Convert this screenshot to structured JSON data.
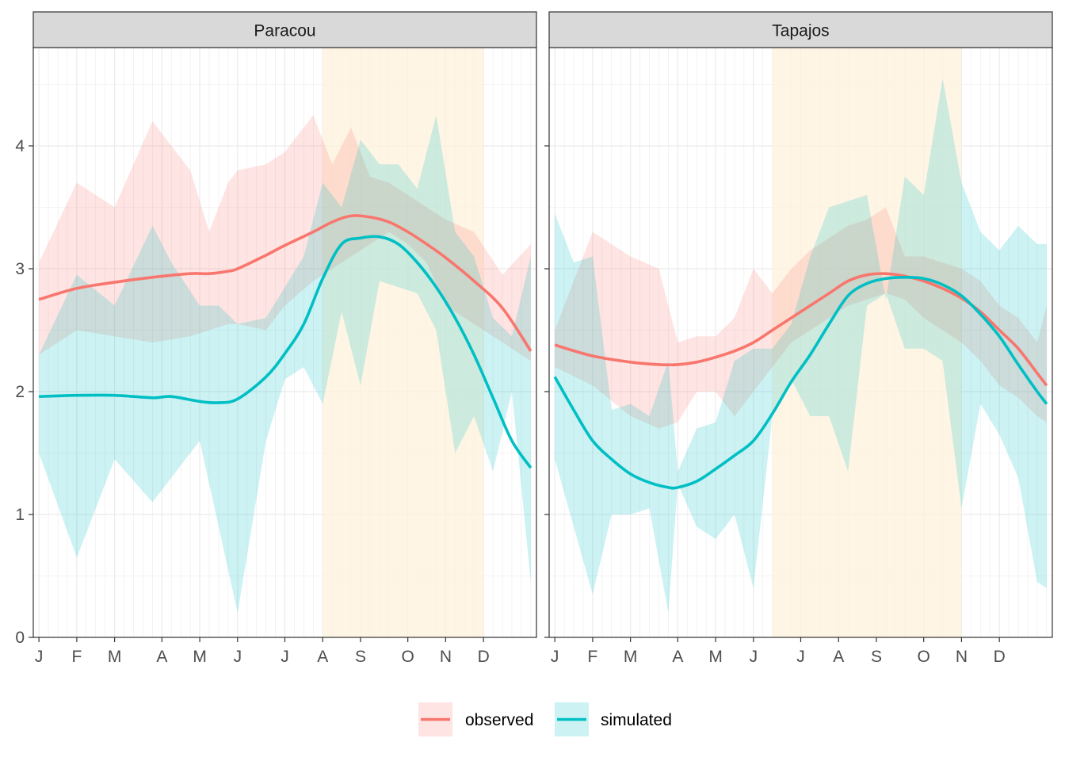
{
  "colors": {
    "observed": "#F8766D",
    "simulated": "#00BFC4",
    "dry_season": "#FFF2DC",
    "strip_bg": "#D9D9D9",
    "grid": "#EBEBEB",
    "axis_text": "#4D4D4D"
  },
  "legend": {
    "position": "bottom",
    "items": [
      {
        "key": "observed",
        "label": "observed"
      },
      {
        "key": "simulated",
        "label": "simulated"
      }
    ]
  },
  "chart_data": [
    {
      "type": "line",
      "panel": "Paracou",
      "ylim": [
        0,
        4.8
      ],
      "yticks": [
        0,
        1,
        2,
        3,
        4
      ],
      "xlim": [
        -0.6,
        52.6
      ],
      "xticks": [
        {
          "label": "J",
          "week": 0
        },
        {
          "label": "F",
          "week": 4
        },
        {
          "label": "M",
          "week": 8
        },
        {
          "label": "A",
          "week": 13
        },
        {
          "label": "M",
          "week": 17
        },
        {
          "label": "J",
          "week": 21
        },
        {
          "label": "J",
          "week": 26
        },
        {
          "label": "A",
          "week": 30
        },
        {
          "label": "S",
          "week": 34
        },
        {
          "label": "O",
          "week": 39
        },
        {
          "label": "N",
          "week": 43
        },
        {
          "label": "D",
          "week": 47
        }
      ],
      "dry_season": [
        30,
        47
      ],
      "series": [
        {
          "name": "observed",
          "x": [
            0,
            4,
            8,
            12,
            16,
            18,
            20,
            21,
            24,
            26,
            29,
            31,
            33,
            35,
            37,
            39,
            41,
            43,
            46,
            49,
            52
          ],
          "y": [
            2.75,
            2.84,
            2.89,
            2.93,
            2.96,
            2.96,
            2.98,
            3.0,
            3.11,
            3.19,
            3.3,
            3.38,
            3.43,
            3.42,
            3.38,
            3.3,
            3.2,
            3.09,
            2.9,
            2.68,
            2.33
          ],
          "band_lower": [
            2.3,
            2.5,
            2.45,
            2.4,
            2.45,
            2.5,
            2.55,
            2.55,
            2.5,
            2.7,
            2.9,
            3.0,
            3.1,
            3.2,
            3.3,
            3.2,
            3.05,
            2.7,
            2.55,
            2.4,
            2.25
          ],
          "band_upper": [
            3.05,
            3.7,
            3.5,
            4.2,
            3.8,
            3.3,
            3.7,
            3.8,
            3.85,
            3.95,
            4.25,
            3.85,
            4.15,
            3.75,
            3.7,
            3.6,
            3.5,
            3.4,
            3.3,
            2.95,
            3.2
          ]
        },
        {
          "name": "simulated",
          "x": [
            0,
            4,
            8,
            12,
            14,
            17,
            19,
            21,
            24,
            26,
            28,
            30,
            32,
            34,
            36,
            38,
            40,
            42,
            44,
            46,
            48,
            50,
            52
          ],
          "y": [
            1.96,
            1.97,
            1.97,
            1.95,
            1.96,
            1.92,
            1.91,
            1.94,
            2.12,
            2.31,
            2.55,
            2.92,
            3.2,
            3.25,
            3.26,
            3.2,
            3.05,
            2.85,
            2.6,
            2.3,
            1.95,
            1.6,
            1.38
          ],
          "band_lower": [
            1.5,
            0.65,
            1.45,
            1.1,
            1.3,
            1.6,
            0.9,
            0.2,
            1.6,
            2.1,
            2.2,
            1.9,
            2.65,
            2.05,
            2.9,
            2.85,
            2.8,
            2.5,
            1.5,
            1.8,
            1.35,
            2.0,
            0.45
          ],
          "band_upper": [
            2.3,
            2.95,
            2.7,
            3.35,
            3.05,
            2.7,
            2.7,
            2.55,
            2.6,
            2.85,
            3.1,
            3.7,
            3.5,
            4.05,
            3.85,
            3.85,
            3.65,
            4.25,
            3.3,
            3.1,
            2.6,
            2.45,
            3.1
          ]
        }
      ]
    },
    {
      "type": "line",
      "panel": "Tapajos",
      "ylim": [
        0,
        4.8
      ],
      "yticks": [
        0,
        1,
        2,
        3,
        4
      ],
      "xlim": [
        -0.6,
        52.6
      ],
      "xticks": [
        {
          "label": "J",
          "week": 0
        },
        {
          "label": "F",
          "week": 4
        },
        {
          "label": "M",
          "week": 8
        },
        {
          "label": "A",
          "week": 13
        },
        {
          "label": "M",
          "week": 17
        },
        {
          "label": "J",
          "week": 21
        },
        {
          "label": "J",
          "week": 26
        },
        {
          "label": "A",
          "week": 30
        },
        {
          "label": "S",
          "week": 34
        },
        {
          "label": "O",
          "week": 39
        },
        {
          "label": "N",
          "week": 43
        },
        {
          "label": "D",
          "week": 47
        }
      ],
      "dry_season": [
        23,
        43
      ],
      "series": [
        {
          "name": "observed",
          "x": [
            0,
            4,
            8,
            11,
            13,
            15,
            17,
            19,
            21,
            23,
            25,
            27,
            29,
            31,
            33,
            35,
            37,
            39,
            41,
            43,
            45,
            47,
            49,
            51,
            52
          ],
          "y": [
            2.38,
            2.29,
            2.24,
            2.22,
            2.22,
            2.24,
            2.28,
            2.33,
            2.4,
            2.5,
            2.6,
            2.7,
            2.8,
            2.9,
            2.95,
            2.96,
            2.94,
            2.9,
            2.84,
            2.76,
            2.65,
            2.5,
            2.35,
            2.15,
            2.05
          ],
          "band_lower": [
            2.2,
            2.05,
            1.8,
            1.7,
            1.75,
            2.0,
            2.0,
            1.8,
            2.0,
            2.2,
            2.4,
            2.5,
            2.6,
            2.7,
            2.75,
            2.8,
            2.75,
            2.6,
            2.5,
            2.4,
            2.25,
            2.05,
            1.95,
            1.8,
            1.75
          ],
          "band_upper": [
            2.5,
            3.3,
            3.1,
            3.0,
            2.4,
            2.45,
            2.45,
            2.6,
            3.0,
            2.8,
            3.0,
            3.15,
            3.25,
            3.35,
            3.4,
            3.5,
            3.1,
            3.1,
            3.05,
            3.0,
            2.9,
            2.7,
            2.6,
            2.4,
            2.7
          ]
        },
        {
          "name": "simulated",
          "x": [
            0,
            2,
            4,
            6,
            8,
            10,
            12,
            13,
            15,
            17,
            19,
            21,
            23,
            25,
            27,
            29,
            31,
            33,
            35,
            37,
            39,
            41,
            43,
            45,
            47,
            49,
            51,
            52
          ],
          "y": [
            2.12,
            1.85,
            1.6,
            1.45,
            1.33,
            1.26,
            1.22,
            1.22,
            1.27,
            1.37,
            1.48,
            1.6,
            1.82,
            2.08,
            2.3,
            2.55,
            2.78,
            2.88,
            2.92,
            2.93,
            2.92,
            2.87,
            2.78,
            2.63,
            2.45,
            2.22,
            2.0,
            1.9
          ],
          "band_lower": [
            1.45,
            0.9,
            0.35,
            1.0,
            1.0,
            1.05,
            0.2,
            1.25,
            0.9,
            0.8,
            1.0,
            0.4,
            1.8,
            2.1,
            1.8,
            1.8,
            1.35,
            2.7,
            2.8,
            2.35,
            2.35,
            2.25,
            1.05,
            1.9,
            1.65,
            1.3,
            0.45,
            0.4
          ],
          "band_upper": [
            3.45,
            3.05,
            3.1,
            1.85,
            1.9,
            1.8,
            2.25,
            1.35,
            1.7,
            1.75,
            2.25,
            2.35,
            2.35,
            2.55,
            3.1,
            3.5,
            3.55,
            3.6,
            2.75,
            3.75,
            3.6,
            4.55,
            3.7,
            3.3,
            3.15,
            3.35,
            3.2,
            3.2
          ]
        }
      ]
    }
  ]
}
